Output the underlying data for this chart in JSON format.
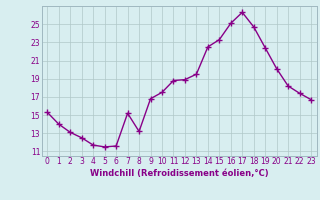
{
  "x": [
    0,
    1,
    2,
    3,
    4,
    5,
    6,
    7,
    8,
    9,
    10,
    11,
    12,
    13,
    14,
    15,
    16,
    17,
    18,
    19,
    20,
    21,
    22,
    23
  ],
  "y": [
    15.3,
    14.0,
    13.1,
    12.5,
    11.7,
    11.5,
    11.6,
    15.2,
    13.2,
    16.8,
    17.5,
    18.8,
    18.9,
    19.5,
    22.5,
    23.3,
    25.1,
    26.3,
    24.7,
    22.4,
    20.1,
    18.2,
    17.4,
    16.7
  ],
  "line_color": "#880088",
  "marker": "+",
  "marker_size": 4,
  "line_width": 1.0,
  "xlabel": "Windchill (Refroidissement éolien,°C)",
  "xlabel_fontsize": 6,
  "xtick_labels": [
    "0",
    "1",
    "2",
    "3",
    "4",
    "5",
    "6",
    "7",
    "8",
    "9",
    "10",
    "11",
    "12",
    "13",
    "14",
    "15",
    "16",
    "17",
    "18",
    "19",
    "20",
    "21",
    "22",
    "23"
  ],
  "ytick_labels": [
    "11",
    "13",
    "15",
    "17",
    "19",
    "21",
    "23",
    "25"
  ],
  "yticks": [
    11,
    13,
    15,
    17,
    19,
    21,
    23,
    25
  ],
  "ylim": [
    10.5,
    27.0
  ],
  "xlim": [
    -0.5,
    23.5
  ],
  "grid_color": "#b0c8c8",
  "bg_color": "#d8eef0",
  "tick_color": "#880088",
  "tick_fontsize": 5.5,
  "spine_color": "#a0b8c0"
}
